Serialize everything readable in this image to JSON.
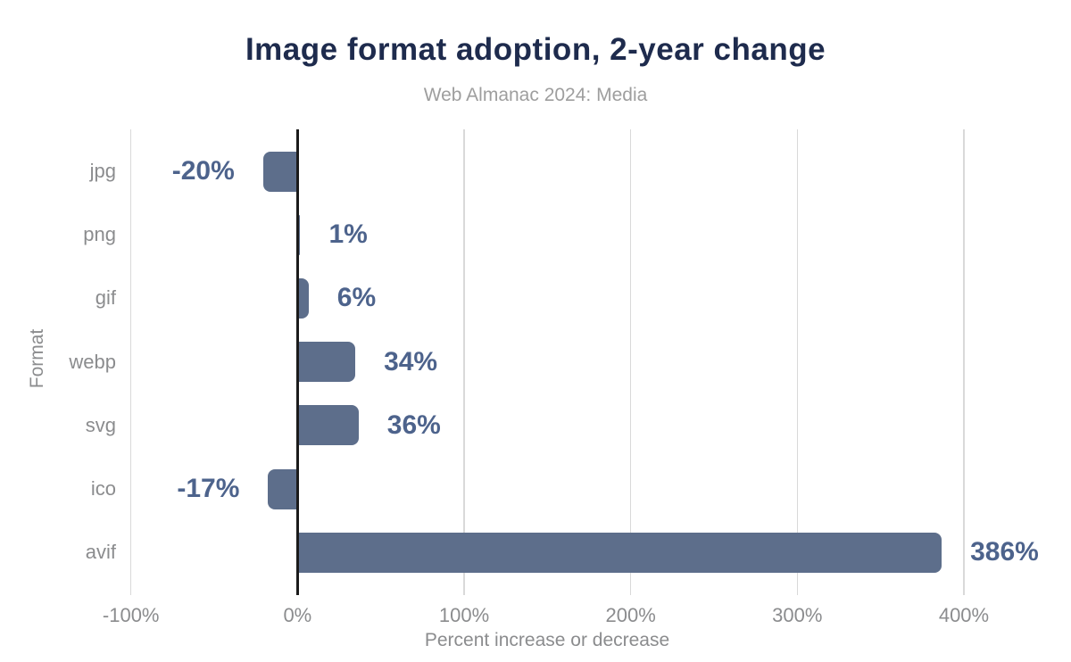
{
  "chart_data": {
    "type": "bar",
    "orientation": "horizontal",
    "title": "Image format adoption, 2-year change",
    "subtitle": "Web Almanac 2024: Media",
    "categories": [
      "jpg",
      "png",
      "gif",
      "webp",
      "svg",
      "ico",
      "avif"
    ],
    "values": [
      -20,
      1,
      6,
      34,
      36,
      -17,
      386
    ],
    "value_labels": [
      "-20%",
      "1%",
      "6%",
      "34%",
      "36%",
      "-17%",
      "386%"
    ],
    "xlabel": "Percent increase or decrease",
    "ylabel": "Format",
    "xlim": [
      -100,
      450
    ],
    "xticks": [
      -100,
      0,
      100,
      200,
      300,
      400
    ],
    "xtick_labels": [
      "-100%",
      "0%",
      "100%",
      "200%",
      "300%",
      "400%"
    ],
    "grid": "vertical-only",
    "legend": false,
    "colors": {
      "bar": "#5d6e8b",
      "value_label": "#4d638c",
      "title": "#1e2b4d",
      "subtitle": "#9e9e9e",
      "axis_text": "#8b8c8e",
      "gridline": "#d9d9d9",
      "zero_line": "#1b1b1b",
      "background": "#ffffff"
    }
  }
}
